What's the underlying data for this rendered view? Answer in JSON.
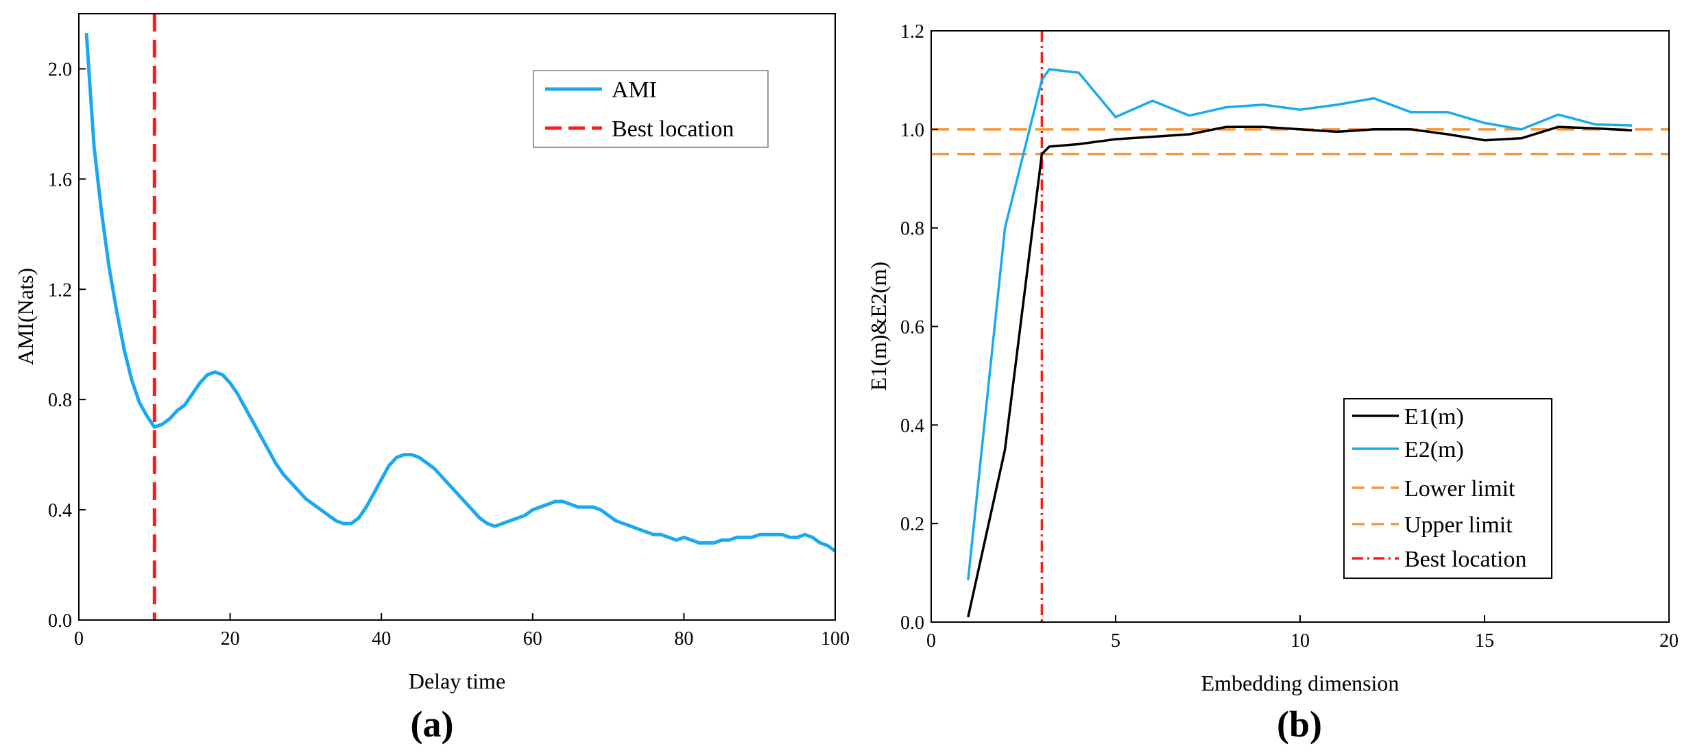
{
  "chart_data": [
    {
      "id": "a",
      "type": "line",
      "panel_label": "(a)",
      "xlabel": "Delay time",
      "ylabel": "AMI(Nats)",
      "xlim": [
        0,
        100
      ],
      "ylim": [
        0,
        2.2
      ],
      "xticks": [
        0,
        20,
        40,
        60,
        80,
        100
      ],
      "xtick_labels": [
        "0",
        "20",
        "40",
        "60",
        "80",
        "100"
      ],
      "yticks": [
        0,
        0.4,
        0.8,
        1.2,
        1.6,
        2.0
      ],
      "ytick_labels": [
        "0.0",
        "0.4",
        "0.8",
        "1.2",
        "1.6",
        "2.0"
      ],
      "legend_position": "top-right",
      "series": [
        {
          "name": "AMI",
          "color": "#1aa8f0",
          "style": "solid",
          "x": [
            1,
            2,
            3,
            4,
            5,
            6,
            7,
            8,
            9,
            10,
            11,
            12,
            13,
            14,
            15,
            16,
            17,
            18,
            19,
            20,
            21,
            22,
            23,
            24,
            25,
            26,
            27,
            28,
            29,
            30,
            31,
            32,
            33,
            34,
            35,
            36,
            37,
            38,
            39,
            40,
            41,
            42,
            43,
            44,
            45,
            46,
            47,
            48,
            49,
            50,
            51,
            52,
            53,
            54,
            55,
            56,
            57,
            58,
            59,
            60,
            61,
            62,
            63,
            64,
            65,
            66,
            67,
            68,
            69,
            70,
            71,
            72,
            73,
            74,
            75,
            76,
            77,
            78,
            79,
            80,
            81,
            82,
            83,
            84,
            85,
            86,
            87,
            88,
            89,
            90,
            91,
            92,
            93,
            94,
            95,
            96,
            97,
            98,
            99,
            100
          ],
          "y": [
            2.13,
            1.72,
            1.48,
            1.28,
            1.12,
            0.98,
            0.87,
            0.79,
            0.74,
            0.7,
            0.71,
            0.73,
            0.76,
            0.78,
            0.82,
            0.86,
            0.89,
            0.9,
            0.89,
            0.86,
            0.82,
            0.77,
            0.72,
            0.67,
            0.62,
            0.57,
            0.53,
            0.5,
            0.47,
            0.44,
            0.42,
            0.4,
            0.38,
            0.36,
            0.35,
            0.35,
            0.37,
            0.41,
            0.46,
            0.51,
            0.56,
            0.59,
            0.6,
            0.6,
            0.59,
            0.57,
            0.55,
            0.52,
            0.49,
            0.46,
            0.43,
            0.4,
            0.37,
            0.35,
            0.34,
            0.35,
            0.36,
            0.37,
            0.38,
            0.4,
            0.41,
            0.42,
            0.43,
            0.43,
            0.42,
            0.41,
            0.41,
            0.41,
            0.4,
            0.38,
            0.36,
            0.35,
            0.34,
            0.33,
            0.32,
            0.31,
            0.31,
            0.3,
            0.29,
            0.3,
            0.29,
            0.28,
            0.28,
            0.28,
            0.29,
            0.29,
            0.3,
            0.3,
            0.3,
            0.31,
            0.31,
            0.31,
            0.31,
            0.3,
            0.3,
            0.31,
            0.3,
            0.28,
            0.27,
            0.25
          ]
        },
        {
          "name": "Best location",
          "color": "#ff1a1a",
          "style": "dashed",
          "vline_x": 10
        }
      ]
    },
    {
      "id": "b",
      "type": "line",
      "panel_label": "(b)",
      "xlabel": "Embedding dimension",
      "ylabel": "E1(m)&E2(m)",
      "xlim": [
        0,
        20
      ],
      "ylim": [
        0,
        1.2
      ],
      "xticks": [
        0,
        5,
        10,
        15,
        20
      ],
      "xtick_labels": [
        "0",
        "5",
        "10",
        "15",
        "20"
      ],
      "yticks": [
        0,
        0.2,
        0.4,
        0.6,
        0.8,
        1.0,
        1.2
      ],
      "ytick_labels": [
        "0.0",
        "0.2",
        "0.4",
        "0.6",
        "0.8",
        "1.0",
        "1.2"
      ],
      "legend_position": "bottom-right",
      "series": [
        {
          "name": "E1(m)",
          "color": "#000000",
          "style": "solid",
          "x": [
            1,
            2,
            3,
            3.2,
            4,
            5,
            6,
            7,
            8,
            9,
            10,
            11,
            12,
            13,
            14,
            15,
            16,
            17,
            18,
            19
          ],
          "y": [
            0.01,
            0.35,
            0.95,
            0.965,
            0.97,
            0.98,
            0.985,
            0.99,
            1.005,
            1.005,
            1.0,
            0.995,
            1.0,
            1.0,
            0.99,
            0.978,
            0.982,
            1.005,
            1.002,
            0.998
          ]
        },
        {
          "name": "E2(m)",
          "color": "#1aa8f0",
          "style": "solid",
          "x": [
            1,
            2,
            2.5,
            3,
            3.2,
            4,
            5,
            6,
            7,
            8,
            9,
            10,
            11,
            12,
            13,
            14,
            15,
            16,
            17,
            18,
            19
          ],
          "y": [
            0.085,
            0.8,
            0.95,
            1.1,
            1.122,
            1.115,
            1.025,
            1.058,
            1.028,
            1.045,
            1.05,
            1.04,
            1.05,
            1.063,
            1.035,
            1.035,
            1.013,
            1.0,
            1.03,
            1.01,
            1.008
          ]
        },
        {
          "name": "Lower limit",
          "color": "#f5963a",
          "style": "dashed",
          "hline_y": 1.0
        },
        {
          "name": "Upper limit",
          "color": "#f5963a",
          "style": "dashed",
          "hline_y": 0.95
        },
        {
          "name": "Best location",
          "color": "#ff1a1a",
          "style": "dashdot",
          "vline_x": 3
        }
      ]
    }
  ]
}
